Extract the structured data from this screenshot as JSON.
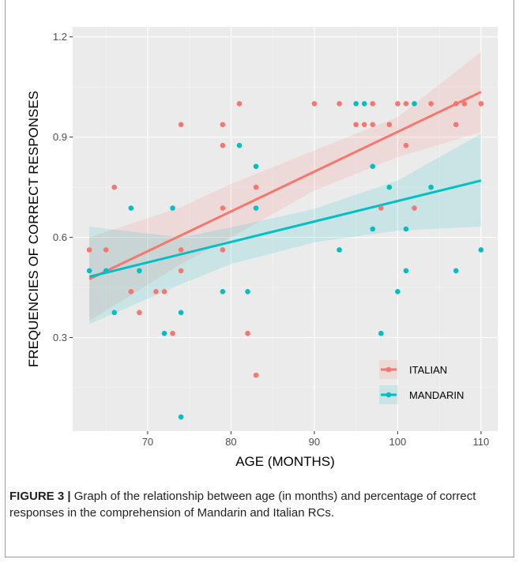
{
  "chart_data": {
    "type": "scatter",
    "xlabel": "AGE (MONTHS)",
    "ylabel": "FREQUENCIES OF CORRECT RESPONSES",
    "xlim": [
      61,
      112
    ],
    "ylim": [
      0.02,
      1.23
    ],
    "xticks": [
      70,
      80,
      90,
      100,
      110
    ],
    "xtick_labels": [
      "70",
      "80",
      "90",
      "100",
      "110"
    ],
    "yticks": [
      0.3,
      0.6,
      0.9,
      1.2
    ],
    "ytick_labels": [
      "0.3",
      "0.6",
      "0.9",
      "1.2"
    ],
    "grid": true,
    "legend_position": "bottom-right",
    "series": [
      {
        "name": "ITALIAN",
        "color": "#f8766d",
        "points": [
          [
            63,
            0.5625
          ],
          [
            65,
            0.5625
          ],
          [
            66,
            0.75
          ],
          [
            68,
            0.4375
          ],
          [
            69,
            0.375
          ],
          [
            71,
            0.4375
          ],
          [
            72,
            0.4375
          ],
          [
            73,
            0.3125
          ],
          [
            74,
            0.5
          ],
          [
            74,
            0.5625
          ],
          [
            74,
            0.9375
          ],
          [
            79,
            0.5625
          ],
          [
            79,
            0.6875
          ],
          [
            79,
            0.875
          ],
          [
            79,
            0.9375
          ],
          [
            81,
            1.0
          ],
          [
            82,
            0.3125
          ],
          [
            83,
            0.1875
          ],
          [
            83,
            0.75
          ],
          [
            90,
            1.0
          ],
          [
            93,
            1.0
          ],
          [
            95,
            0.9375
          ],
          [
            96,
            0.9375
          ],
          [
            97,
            0.9375
          ],
          [
            97,
            1.0
          ],
          [
            98,
            0.6875
          ],
          [
            99,
            0.9375
          ],
          [
            100,
            1.0
          ],
          [
            101,
            0.875
          ],
          [
            101,
            1.0
          ],
          [
            102,
            0.6875
          ],
          [
            104,
            1.0
          ],
          [
            107,
            0.9375
          ],
          [
            107,
            1.0
          ],
          [
            108,
            1.0
          ],
          [
            110,
            1.0
          ]
        ],
        "fit": {
          "x": [
            63,
            110
          ],
          "y": [
            0.475,
            1.035
          ]
        },
        "ci_lower": [
          [
            63,
            0.35
          ],
          [
            74,
            0.52
          ],
          [
            80,
            0.6
          ],
          [
            90,
            0.74
          ],
          [
            100,
            0.84
          ],
          [
            110,
            0.915
          ]
        ],
        "ci_upper": [
          [
            63,
            0.6
          ],
          [
            74,
            0.69
          ],
          [
            80,
            0.76
          ],
          [
            90,
            0.86
          ],
          [
            100,
            0.96
          ],
          [
            110,
            1.155
          ]
        ]
      },
      {
        "name": "MANDARIN",
        "color": "#00bfc4",
        "points": [
          [
            63,
            0.5
          ],
          [
            65,
            0.5
          ],
          [
            66,
            0.375
          ],
          [
            68,
            0.6875
          ],
          [
            69,
            0.5
          ],
          [
            72,
            0.3125
          ],
          [
            73,
            0.6875
          ],
          [
            74,
            0.375
          ],
          [
            74,
            0.0625
          ],
          [
            79,
            0.4375
          ],
          [
            81,
            0.875
          ],
          [
            82,
            0.4375
          ],
          [
            83,
            0.8125
          ],
          [
            83,
            0.6875
          ],
          [
            93,
            0.5625
          ],
          [
            95,
            1.0
          ],
          [
            96,
            1.0
          ],
          [
            97,
            0.8125
          ],
          [
            97,
            0.625
          ],
          [
            98,
            0.3125
          ],
          [
            99,
            0.75
          ],
          [
            100,
            0.4375
          ],
          [
            101,
            0.625
          ],
          [
            101,
            0.5
          ],
          [
            102,
            1.0
          ],
          [
            104,
            0.75
          ],
          [
            107,
            0.5
          ],
          [
            110,
            0.5625
          ]
        ],
        "fit": {
          "x": [
            63,
            110
          ],
          "y": [
            0.482,
            0.77
          ]
        },
        "ci_lower": [
          [
            63,
            0.34
          ],
          [
            74,
            0.46
          ],
          [
            80,
            0.52
          ],
          [
            90,
            0.585
          ],
          [
            100,
            0.62
          ],
          [
            110,
            0.632
          ]
        ],
        "ci_upper": [
          [
            63,
            0.632
          ],
          [
            74,
            0.6
          ],
          [
            80,
            0.63
          ],
          [
            90,
            0.685
          ],
          [
            100,
            0.77
          ],
          [
            110,
            0.91
          ]
        ]
      }
    ]
  },
  "caption": {
    "figure_label": "FIGURE 3",
    "separator": "|",
    "text": "Graph of the relationship between age (in months) and percentage of correct responses in the comprehension of Mandarin and Italian RCs."
  }
}
